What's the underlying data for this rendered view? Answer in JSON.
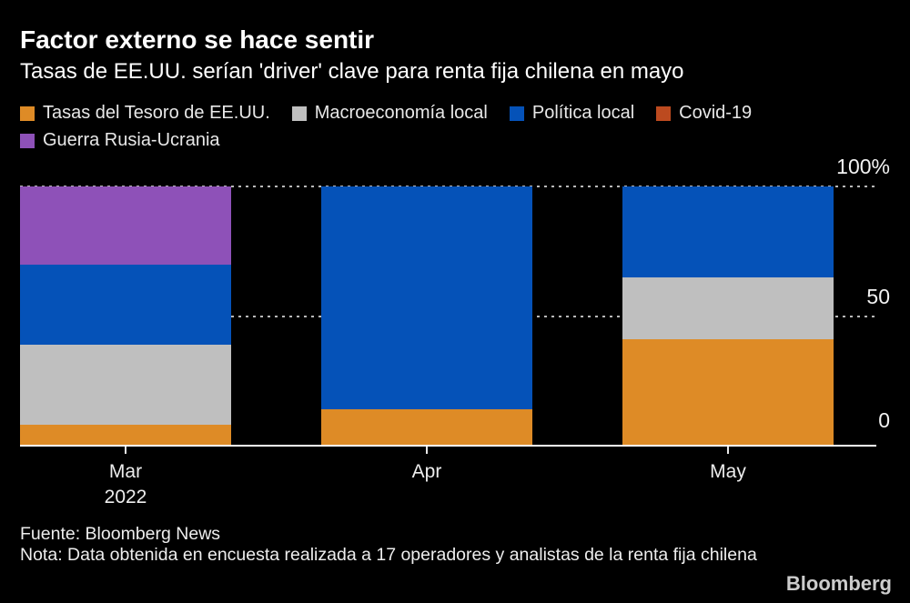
{
  "header": {
    "title": "Factor externo se hace sentir",
    "subtitle": "Tasas de EE.UU. serían 'driver' clave para renta fija chilena en mayo"
  },
  "legend": {
    "items": [
      {
        "label": "Tasas del Tesoro de EE.UU.",
        "color": "#DE8B26"
      },
      {
        "label": "Macroeconomía local",
        "color": "#BFBFBF"
      },
      {
        "label": "Política local",
        "color": "#0552B8"
      },
      {
        "label": "Covid-19",
        "color": "#BC4A1F"
      },
      {
        "label": "Guerra Rusia-Ucrania",
        "color": "#8E51B8"
      }
    ]
  },
  "chart_data": {
    "type": "bar",
    "stacked": true,
    "unit": "%",
    "title": "Factor externo se hace sentir",
    "subtitle": "Tasas de EE.UU. serían 'driver' clave para renta fija chilena en mayo",
    "categories": [
      "Mar 2022",
      "Apr",
      "May"
    ],
    "x_tick_labels": [
      {
        "line1": "Mar",
        "line2": "2022"
      },
      {
        "line1": "Apr",
        "line2": ""
      },
      {
        "line1": "May",
        "line2": ""
      }
    ],
    "series": [
      {
        "name": "Tasas del Tesoro de EE.UU.",
        "color": "#DE8B26",
        "values": [
          8,
          14,
          41
        ]
      },
      {
        "name": "Macroeconomía local",
        "color": "#BFBFBF",
        "values": [
          31,
          0,
          24
        ]
      },
      {
        "name": "Política local",
        "color": "#0552B8",
        "values": [
          31,
          86,
          35
        ]
      },
      {
        "name": "Covid-19",
        "color": "#BC4A1F",
        "values": [
          0,
          0,
          0
        ]
      },
      {
        "name": "Guerra Rusia-Ucrania",
        "color": "#8E51B8",
        "values": [
          30,
          0,
          0
        ]
      }
    ],
    "ylim": [
      0,
      100
    ],
    "y_tick_labels": [
      "100%",
      "50",
      "0"
    ],
    "gridlines_at": [
      100,
      50
    ],
    "grid_style": "dotted",
    "legend_position": "top"
  },
  "footer": {
    "source": "Fuente: Bloomberg News",
    "note": "Nota: Data obtenida en encuesta realizada a 17 operadores y analistas de la renta fija chilena",
    "brand": "Bloomberg"
  }
}
